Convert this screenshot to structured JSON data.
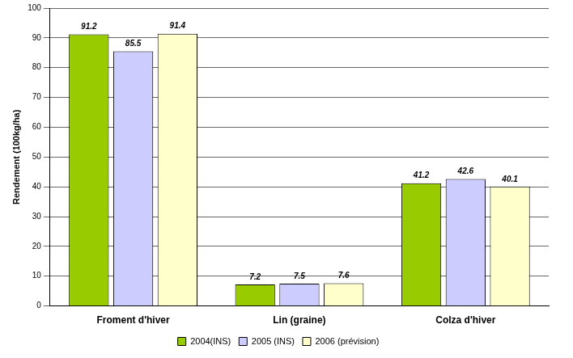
{
  "chart_data": {
    "type": "bar",
    "y_label": "Rendement (100kg/ha)",
    "categories": [
      "Froment d'hiver",
      "Lin (graine)",
      "Colza d'hiver"
    ],
    "series": [
      {
        "name": "2004(INS)",
        "color": "#99cc00",
        "values": [
          91.2,
          7.2,
          41.2
        ]
      },
      {
        "name": "2005 (INS)",
        "color": "#ccccff",
        "values": [
          85.5,
          7.5,
          42.6
        ]
      },
      {
        "name": "2006 (prévision)",
        "color": "#ffffcc",
        "values": [
          91.4,
          7.6,
          40.1
        ]
      }
    ],
    "ylim": [
      0,
      100
    ],
    "yticks": [
      0,
      10,
      20,
      30,
      40,
      50,
      60,
      70,
      80,
      90,
      100
    ],
    "grid": true,
    "legend": "bottom",
    "data_labels": true
  }
}
